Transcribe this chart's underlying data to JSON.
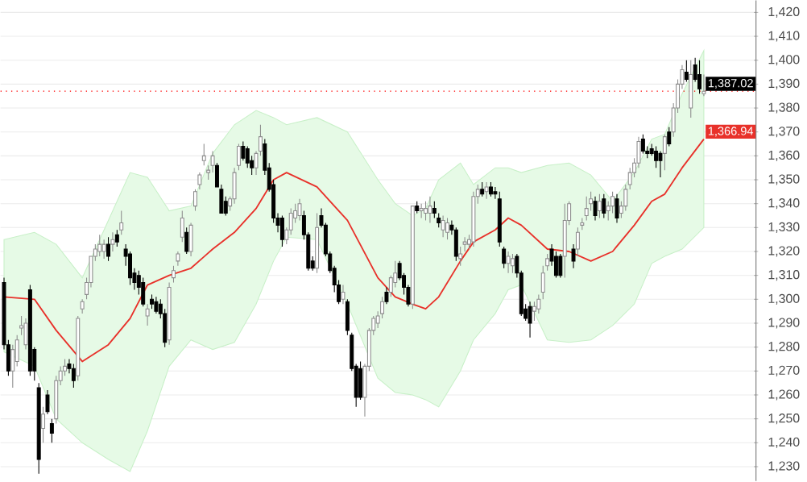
{
  "chart_data": {
    "type": "candlestick",
    "categories": [
      null,
      null,
      null,
      null,
      null,
      null,
      null,
      null,
      null,
      null,
      null,
      null,
      null,
      null,
      null,
      null,
      null,
      null,
      null,
      null,
      null,
      null,
      null,
      null,
      null,
      null,
      null,
      null,
      null,
      null,
      null,
      null,
      null,
      null,
      null,
      null,
      null,
      null,
      null,
      null,
      null,
      null,
      null,
      null,
      null,
      null,
      null,
      null,
      null,
      null,
      null,
      null,
      null,
      null,
      null,
      null,
      null,
      null,
      null,
      null,
      null,
      null,
      null,
      null,
      null,
      null,
      null,
      null,
      null,
      null,
      null,
      null,
      null,
      null,
      null,
      null,
      null,
      null,
      null,
      null,
      null,
      null,
      null,
      null,
      null,
      null,
      null,
      null,
      null,
      null,
      null,
      null,
      null,
      null,
      null,
      null,
      null,
      null,
      null,
      null,
      null,
      null,
      null,
      null,
      null,
      null,
      null,
      null,
      null,
      null,
      null,
      null,
      null,
      null,
      null,
      null,
      null,
      null,
      null,
      null,
      null,
      null,
      null,
      null,
      null,
      null,
      null,
      null,
      null,
      null,
      null,
      null,
      null,
      null,
      null,
      null,
      null,
      null,
      null,
      null,
      null,
      null,
      null,
      null,
      null,
      null,
      null,
      null,
      null,
      null,
      null,
      null,
      null,
      null,
      null,
      null,
      null,
      null,
      null,
      null,
      null,
      null
    ],
    "ohlc": [
      [
        1307,
        1309,
        1279,
        1281
      ],
      [
        1281,
        1283,
        1268,
        1270
      ],
      [
        1270,
        1281,
        1263,
        1279
      ],
      [
        1274,
        1285,
        1272,
        1283
      ],
      [
        1288,
        1293,
        1285,
        1289
      ],
      [
        1281,
        1292,
        1279,
        1290
      ],
      [
        1304,
        1306,
        1268,
        1270
      ],
      [
        1279,
        1280,
        1266,
        1270
      ],
      [
        1263,
        1265,
        1227,
        1233
      ],
      [
        1246,
        1255,
        1240,
        1252
      ],
      [
        1260,
        1262,
        1252,
        1253
      ],
      [
        1248,
        1250,
        1240,
        1244
      ],
      [
        1250,
        1268,
        1248,
        1266
      ],
      [
        1266,
        1272,
        1264,
        1270
      ],
      [
        1270,
        1275,
        1268,
        1272
      ],
      [
        1273,
        1275,
        1269,
        1271
      ],
      [
        1271,
        1273,
        1263,
        1266
      ],
      [
        1268,
        1293,
        1266,
        1292
      ],
      [
        1296,
        1300,
        1294,
        1299
      ],
      [
        1302,
        1309,
        1300,
        1307
      ],
      [
        1307,
        1318,
        1305,
        1318
      ],
      [
        1318,
        1323,
        1316,
        1321
      ],
      [
        1320,
        1327,
        1318,
        1323
      ],
      [
        1320,
        1325,
        1317,
        1323
      ],
      [
        1323,
        1326,
        1316,
        1318
      ],
      [
        1323,
        1328,
        1320,
        1325
      ],
      [
        1327,
        1329,
        1322,
        1324
      ],
      [
        1329,
        1337,
        1327,
        1332
      ],
      [
        1321,
        1323,
        1314,
        1318
      ],
      [
        1319,
        1320,
        1306,
        1309
      ],
      [
        1311,
        1313,
        1304,
        1307
      ],
      [
        1310,
        1312,
        1302,
        1305
      ],
      [
        1307,
        1309,
        1297,
        1298
      ],
      [
        1293,
        1298,
        1289,
        1296
      ],
      [
        1300,
        1302,
        1296,
        1298
      ],
      [
        1299,
        1301,
        1294,
        1295
      ],
      [
        1298,
        1300,
        1292,
        1294
      ],
      [
        1294,
        1296,
        1280,
        1282
      ],
      [
        1283,
        1307,
        1281,
        1305
      ],
      [
        1309,
        1314,
        1307,
        1312
      ],
      [
        1316,
        1320,
        1314,
        1319
      ],
      [
        1326,
        1337,
        1324,
        1334
      ],
      [
        1328,
        1330,
        1319,
        1320
      ],
      [
        1320,
        1332,
        1318,
        1331
      ],
      [
        1339,
        1346,
        1337,
        1345
      ],
      [
        1348,
        1353,
        1346,
        1352
      ],
      [
        1358,
        1365,
        1356,
        1360
      ],
      [
        1353,
        1356,
        1350,
        1354
      ],
      [
        1356,
        1362,
        1353,
        1360
      ],
      [
        1356,
        1357,
        1347,
        1347
      ],
      [
        1346,
        1348,
        1336,
        1336
      ],
      [
        1341,
        1343,
        1335,
        1336
      ],
      [
        1339,
        1343,
        1337,
        1342
      ],
      [
        1342,
        1355,
        1340,
        1353
      ],
      [
        1356,
        1365,
        1354,
        1364
      ],
      [
        1364,
        1366,
        1358,
        1359
      ],
      [
        1363,
        1364,
        1355,
        1357
      ],
      [
        1358,
        1360,
        1352,
        1355
      ],
      [
        1355,
        1362,
        1352,
        1361
      ],
      [
        1362,
        1373,
        1360,
        1368
      ],
      [
        1365,
        1367,
        1352,
        1354
      ],
      [
        1355,
        1357,
        1345,
        1346
      ],
      [
        1348,
        1350,
        1332,
        1334
      ],
      [
        1334,
        1336,
        1328,
        1331
      ],
      [
        1334,
        1335,
        1322,
        1325
      ],
      [
        1325,
        1330,
        1323,
        1329
      ],
      [
        1329,
        1338,
        1327,
        1336
      ],
      [
        1334,
        1340,
        1332,
        1337
      ],
      [
        1335,
        1342,
        1333,
        1340
      ],
      [
        1335,
        1337,
        1325,
        1327
      ],
      [
        1327,
        1328,
        1312,
        1313
      ],
      [
        1316,
        1318,
        1312,
        1313
      ],
      [
        1313,
        1336,
        1311,
        1330
      ],
      [
        1335,
        1338,
        1330,
        1331
      ],
      [
        1331,
        1332,
        1318,
        1319
      ],
      [
        1319,
        1320,
        1311,
        1312
      ],
      [
        1313,
        1314,
        1303,
        1306
      ],
      [
        1306,
        1308,
        1298,
        1299
      ],
      [
        1300,
        1306,
        1298,
        1303
      ],
      [
        1299,
        1300,
        1285,
        1287
      ],
      [
        1285,
        1286,
        1270,
        1271
      ],
      [
        1272,
        1273,
        1255,
        1259
      ],
      [
        1271,
        1274,
        1258,
        1259
      ],
      [
        1259,
        1273,
        1251,
        1272
      ],
      [
        1272,
        1288,
        1270,
        1287
      ],
      [
        1287,
        1293,
        1285,
        1292
      ],
      [
        1290,
        1295,
        1288,
        1293
      ],
      [
        1294,
        1301,
        1292,
        1299
      ],
      [
        1303,
        1305,
        1298,
        1299
      ],
      [
        1303,
        1310,
        1301,
        1309
      ],
      [
        1307,
        1316,
        1305,
        1311
      ],
      [
        1315,
        1316,
        1308,
        1309
      ],
      [
        1310,
        1311,
        1302,
        1305
      ],
      [
        1305,
        1306,
        1297,
        1298
      ],
      [
        1298,
        1339,
        1296,
        1339
      ],
      [
        1339,
        1341,
        1336,
        1337
      ],
      [
        1337,
        1340,
        1334,
        1338
      ],
      [
        1336,
        1341,
        1333,
        1338
      ],
      [
        1336,
        1343,
        1332,
        1339
      ],
      [
        1338,
        1341,
        1334,
        1336
      ],
      [
        1334,
        1336,
        1330,
        1332
      ],
      [
        1329,
        1335,
        1326,
        1333
      ],
      [
        1328,
        1334,
        1325,
        1332
      ],
      [
        1331,
        1333,
        1327,
        1329
      ],
      [
        1329,
        1330,
        1316,
        1318
      ],
      [
        1317,
        1322,
        1314,
        1319
      ],
      [
        1323,
        1326,
        1320,
        1324
      ],
      [
        1323,
        1327,
        1321,
        1325
      ],
      [
        1324,
        1345,
        1322,
        1343
      ],
      [
        1343,
        1348,
        1340,
        1346
      ],
      [
        1346,
        1349,
        1343,
        1344
      ],
      [
        1345,
        1349,
        1342,
        1347
      ],
      [
        1347,
        1349,
        1343,
        1344
      ],
      [
        1345,
        1347,
        1342,
        1344
      ],
      [
        1342,
        1345,
        1322,
        1324
      ],
      [
        1321,
        1322,
        1313,
        1315
      ],
      [
        1315,
        1320,
        1311,
        1318
      ],
      [
        1314,
        1319,
        1311,
        1317
      ],
      [
        1318,
        1319,
        1309,
        1311
      ],
      [
        1311,
        1312,
        1293,
        1294
      ],
      [
        1296,
        1298,
        1291,
        1292
      ],
      [
        1297,
        1299,
        1284,
        1290
      ],
      [
        1295,
        1299,
        1291,
        1297
      ],
      [
        1296,
        1302,
        1294,
        1300
      ],
      [
        1303,
        1314,
        1300,
        1311
      ],
      [
        1314,
        1319,
        1312,
        1317
      ],
      [
        1321,
        1323,
        1314,
        1316
      ],
      [
        1318,
        1320,
        1309,
        1310
      ],
      [
        1318,
        1319,
        1309,
        1310
      ],
      [
        1318,
        1340,
        1309,
        1333
      ],
      [
        1333,
        1341,
        1331,
        1340
      ],
      [
        1321,
        1323,
        1313,
        1316
      ],
      [
        1321,
        1330,
        1318,
        1328
      ],
      [
        1331,
        1334,
        1329,
        1332
      ],
      [
        1335,
        1343,
        1333,
        1338
      ],
      [
        1340,
        1345,
        1337,
        1342
      ],
      [
        1341,
        1343,
        1333,
        1335
      ],
      [
        1337,
        1344,
        1334,
        1341
      ],
      [
        1342,
        1344,
        1334,
        1336
      ],
      [
        1337,
        1341,
        1333,
        1339
      ],
      [
        1339,
        1345,
        1336,
        1343
      ],
      [
        1342,
        1344,
        1332,
        1334
      ],
      [
        1336,
        1341,
        1334,
        1339
      ],
      [
        1339,
        1348,
        1337,
        1346
      ],
      [
        1348,
        1355,
        1346,
        1353
      ],
      [
        1353,
        1359,
        1351,
        1357
      ],
      [
        1357,
        1368,
        1355,
        1366
      ],
      [
        1367,
        1369,
        1361,
        1362
      ],
      [
        1362,
        1364,
        1359,
        1361
      ],
      [
        1363,
        1365,
        1360,
        1361
      ],
      [
        1362,
        1364,
        1355,
        1358
      ],
      [
        1361,
        1362,
        1351,
        1358
      ],
      [
        1361,
        1369,
        1354,
        1368
      ],
      [
        1370,
        1372,
        1364,
        1365
      ],
      [
        1370,
        1382,
        1368,
        1380
      ],
      [
        1380,
        1392,
        1378,
        1390
      ],
      [
        1390,
        1398,
        1388,
        1396
      ],
      [
        1395,
        1400,
        1391,
        1392
      ],
      [
        1380,
        1400,
        1376,
        1394
      ],
      [
        1398,
        1401,
        1391,
        1392
      ],
      [
        1394,
        1400,
        1386,
        1388
      ],
      [
        1386,
        1394,
        1385,
        1387
      ]
    ],
    "colors": [
      "#000000",
      "#000000",
      "#ffffff",
      "#ffffff",
      "#ffffff",
      "#ffffff",
      "#000000",
      "#000000",
      "#000000",
      "#ffffff",
      "#000000",
      "#000000",
      "#ffffff",
      "#ffffff",
      "#ffffff",
      "#000000",
      "#000000",
      "#ffffff",
      "#ffffff",
      "#ffffff",
      "#ffffff",
      "#ffffff",
      "#ffffff",
      "#ffffff",
      "#000000",
      "#ffffff",
      "#000000",
      "#ffffff",
      "#000000",
      "#000000",
      "#000000",
      "#000000",
      "#000000",
      "#ffffff",
      "#000000",
      "#000000",
      "#000000",
      "#000000",
      "#ffffff",
      "#ffffff",
      "#ffffff",
      "#ffffff",
      "#000000",
      "#ffffff",
      "#ffffff",
      "#ffffff",
      "#ffffff",
      "#ffffff",
      "#ffffff",
      "#000000",
      "#000000",
      "#000000",
      "#ffffff",
      "#ffffff",
      "#ffffff",
      "#000000",
      "#000000",
      "#000000",
      "#ffffff",
      "#ffffff",
      "#000000",
      "#000000",
      "#000000",
      "#000000",
      "#000000",
      "#ffffff",
      "#ffffff",
      "#ffffff",
      "#ffffff",
      "#000000",
      "#000000",
      "#000000",
      "#ffffff",
      "#000000",
      "#000000",
      "#000000",
      "#000000",
      "#000000",
      "#ffffff",
      "#000000",
      "#000000",
      "#000000",
      "#000000",
      "#ffffff",
      "#ffffff",
      "#ffffff",
      "#ffffff",
      "#ffffff",
      "#000000",
      "#ffffff",
      "#ffffff",
      "#000000",
      "#000000",
      "#000000",
      "#ffffff",
      "#000000",
      "#ffffff",
      "#ffffff",
      "#ffffff",
      "#000000",
      "#000000",
      "#ffffff",
      "#ffffff",
      "#000000",
      "#000000",
      "#ffffff",
      "#ffffff",
      "#ffffff",
      "#ffffff",
      "#ffffff",
      "#000000",
      "#ffffff",
      "#000000",
      "#000000",
      "#000000",
      "#000000",
      "#ffffff",
      "#ffffff",
      "#000000",
      "#000000",
      "#000000",
      "#000000",
      "#ffffff",
      "#ffffff",
      "#ffffff",
      "#ffffff",
      "#000000",
      "#000000",
      "#000000",
      "#ffffff",
      "#ffffff",
      "#000000",
      "#ffffff",
      "#ffffff",
      "#ffffff",
      "#ffffff",
      "#000000",
      "#ffffff",
      "#000000",
      "#ffffff",
      "#ffffff",
      "#000000",
      "#ffffff",
      "#ffffff",
      "#ffffff",
      "#ffffff",
      "#ffffff",
      "#000000",
      "#000000",
      "#000000",
      "#000000",
      "#000000",
      "#ffffff",
      "#000000",
      "#ffffff",
      "#ffffff",
      "#ffffff",
      "#000000",
      "#ffffff",
      "#000000",
      "#000000",
      "#ffffff"
    ],
    "series": [
      {
        "type": "line",
        "color": "#e8312a",
        "values": [
          1301,
          null,
          null,
          null,
          null,
          null,
          null,
          1300,
          null,
          null,
          null,
          null,
          1287,
          null,
          null,
          null,
          null,
          null,
          1274,
          null,
          null,
          null,
          null,
          null,
          1281,
          null,
          null,
          null,
          null,
          1292,
          null,
          null,
          null,
          1306,
          null,
          null,
          null,
          null,
          1310,
          null,
          null,
          null,
          null,
          1313,
          null,
          null,
          null,
          null,
          1321,
          null,
          null,
          null,
          null,
          1328,
          null,
          null,
          null,
          null,
          1338,
          null,
          null,
          null,
          1350,
          null,
          null,
          1353,
          null,
          null,
          null,
          null,
          null,
          null,
          1347,
          null,
          null,
          null,
          null,
          null,
          null,
          1333,
          null,
          null,
          null,
          null,
          null,
          null,
          1309,
          null,
          null,
          null,
          1301,
          null,
          null,
          null,
          1298,
          null,
          null,
          1296,
          null,
          null,
          1301,
          null,
          null,
          null,
          null,
          1316,
          null,
          null,
          1324,
          null,
          null,
          null,
          null,
          1329,
          null,
          null,
          1334,
          null,
          null,
          1331,
          null,
          null,
          null,
          null,
          null,
          1321,
          null,
          null,
          null,
          null,
          1320,
          null,
          null,
          null,
          null,
          1316,
          null,
          null,
          null,
          null,
          1320,
          null,
          null,
          null,
          null,
          1331,
          null,
          null,
          null,
          1341,
          null,
          null,
          1344,
          null,
          null,
          null,
          1355,
          null,
          null,
          null,
          null,
          1367
        ],
        "upper": [
          1325,
          null,
          null,
          null,
          null,
          null,
          null,
          1328,
          null,
          null,
          null,
          null,
          1323,
          null,
          null,
          null,
          null,
          null,
          1309,
          null,
          null,
          null,
          null,
          null,
          1333,
          null,
          null,
          null,
          null,
          1353,
          null,
          null,
          null,
          1351,
          null,
          null,
          null,
          null,
          1337,
          null,
          null,
          null,
          null,
          1339,
          null,
          null,
          null,
          null,
          1361,
          null,
          null,
          null,
          null,
          1373,
          null,
          null,
          null,
          null,
          1379,
          null,
          null,
          null,
          1376,
          null,
          null,
          1373,
          null,
          null,
          null,
          null,
          null,
          null,
          1376,
          null,
          null,
          null,
          null,
          null,
          null,
          1370,
          null,
          null,
          null,
          null,
          null,
          null,
          1350,
          null,
          null,
          null,
          1340,
          null,
          null,
          null,
          1335,
          null,
          null,
          1338,
          null,
          null,
          1350,
          null,
          null,
          null,
          null,
          1357,
          null,
          null,
          1348,
          null,
          null,
          null,
          null,
          1355,
          null,
          null,
          1355,
          null,
          null,
          1353,
          null,
          null,
          null,
          null,
          null,
          1356,
          null,
          null,
          null,
          null,
          1357,
          null,
          null,
          null,
          null,
          1352,
          null,
          null,
          null,
          null,
          1341,
          null,
          null,
          null,
          null,
          1353,
          null,
          null,
          null,
          1367,
          null,
          null,
          1369,
          null,
          null,
          null,
          1386,
          null,
          null,
          null,
          null,
          1404
        ],
        "lower": [
          1278,
          null,
          null,
          null,
          null,
          null,
          null,
          1272,
          null,
          null,
          null,
          null,
          1250,
          null,
          null,
          null,
          null,
          null,
          1240,
          null,
          null,
          null,
          null,
          null,
          1233,
          null,
          null,
          null,
          null,
          1228,
          null,
          null,
          null,
          1245,
          null,
          null,
          null,
          null,
          1272,
          null,
          null,
          null,
          null,
          1283,
          null,
          null,
          null,
          null,
          1279,
          null,
          null,
          null,
          null,
          1282,
          null,
          null,
          null,
          null,
          1298,
          null,
          null,
          null,
          1316,
          null,
          null,
          1326,
          null,
          null,
          null,
          null,
          null,
          null,
          1325,
          null,
          null,
          null,
          null,
          null,
          null,
          1298,
          null,
          null,
          null,
          null,
          null,
          null,
          1267,
          null,
          null,
          null,
          1261,
          null,
          null,
          null,
          1260,
          null,
          null,
          1258,
          null,
          null,
          1255,
          null,
          null,
          null,
          null,
          1270,
          null,
          null,
          1283,
          null,
          null,
          null,
          null,
          1294,
          null,
          null,
          1304,
          null,
          null,
          1306,
          null,
          null,
          null,
          null,
          null,
          1283,
          null,
          null,
          null,
          null,
          1282,
          null,
          null,
          null,
          null,
          1283,
          null,
          null,
          null,
          null,
          1289,
          null,
          null,
          null,
          null,
          1298,
          null,
          null,
          null,
          1315,
          null,
          null,
          1318,
          null,
          null,
          null,
          1321,
          null,
          null,
          null,
          null,
          1330
        ]
      }
    ],
    "ylim": [
      1224,
      1425
    ],
    "yticks": [
      {
        "value": 1230,
        "label": "1,230"
      },
      {
        "value": 1240,
        "label": "1,240"
      },
      {
        "value": 1250,
        "label": "1,250"
      },
      {
        "value": 1260,
        "label": "1,260"
      },
      {
        "value": 1270,
        "label": "1,270"
      },
      {
        "value": 1280,
        "label": "1,280"
      },
      {
        "value": 1290,
        "label": "1,290"
      },
      {
        "value": 1300,
        "label": "1,300"
      },
      {
        "value": 1310,
        "label": "1,310"
      },
      {
        "value": 1320,
        "label": "1,320"
      },
      {
        "value": 1330,
        "label": "1,330"
      },
      {
        "value": 1340,
        "label": "1,340"
      },
      {
        "value": 1350,
        "label": "1,350"
      },
      {
        "value": 1360,
        "label": "1,360"
      },
      {
        "value": 1370,
        "label": "1,370"
      },
      {
        "value": 1380,
        "label": "1,380"
      },
      {
        "value": 1390,
        "label": "1,390"
      },
      {
        "value": 1400,
        "label": "1,400"
      },
      {
        "value": 1410,
        "label": "1,410"
      },
      {
        "value": 1420,
        "label": "1,420"
      }
    ],
    "ref_lines": [
      {
        "axis": "y",
        "value": 1387.02,
        "label": "1,387.02",
        "color": "#ff0000",
        "line_style": "dotted"
      }
    ],
    "annotations": [
      "1,366.94"
    ],
    "grid": "y",
    "tick_labels": "y"
  }
}
